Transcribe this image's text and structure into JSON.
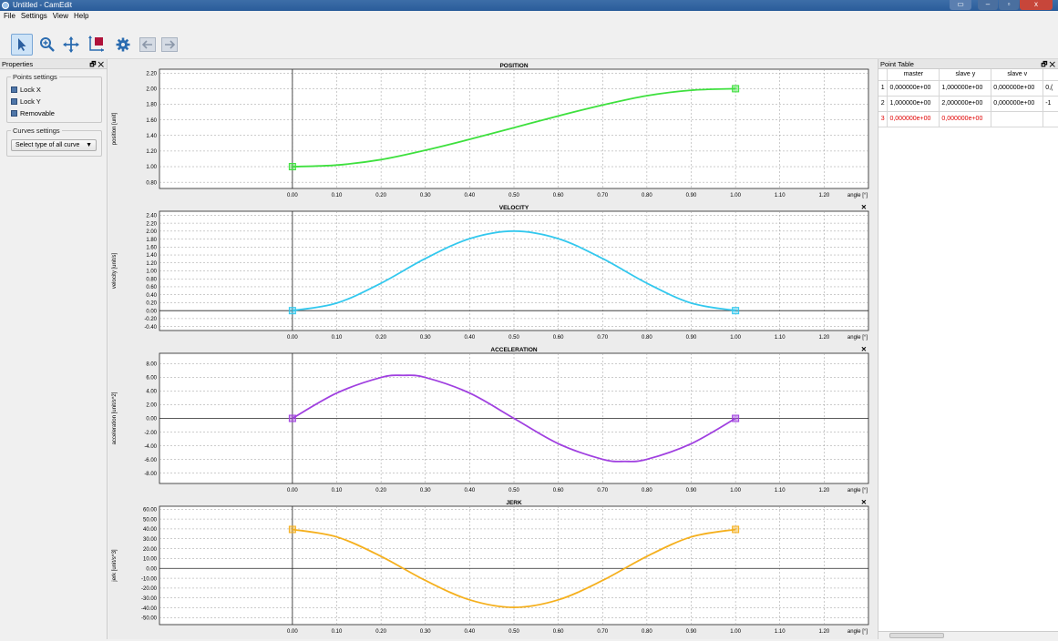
{
  "window": {
    "title": "Untitled - CamEdit",
    "btn_min": "–",
    "btn_max": "▫",
    "btn_close": "x"
  },
  "menu": [
    "File",
    "Settings",
    "View",
    "Help"
  ],
  "toolbar": {
    "icons": [
      "select-arrow-icon",
      "zoom-icon",
      "pan-icon",
      "crop-icon",
      "settings-gear-icon",
      "back-arrow-icon",
      "forward-arrow-icon"
    ]
  },
  "properties": {
    "title": "Properties",
    "float_symbol": "🗗",
    "close_symbol": "✕",
    "points_settings": {
      "legend": "Points settings",
      "options": [
        "Lock X",
        "Lock Y",
        "Removable"
      ]
    },
    "curves_settings": {
      "legend": "Curves settings",
      "select_value": "Select type of all curve"
    }
  },
  "point_table": {
    "title": "Point Table",
    "columns": [
      "master",
      "slave y",
      "slave v"
    ],
    "rows": [
      {
        "n": "1",
        "master": "0,000000e+00",
        "slave_y": "1,000000e+00",
        "slave_v": "0,000000e+00",
        "extra": "0,("
      },
      {
        "n": "2",
        "master": "1,000000e+00",
        "slave_y": "2,000000e+00",
        "slave_v": "0,000000e+00",
        "extra": "-1"
      },
      {
        "n": "3",
        "master": "0,000000e+00",
        "slave_y": "0,000000e+00",
        "slave_v": "",
        "extra": ""
      }
    ]
  },
  "chart_data": [
    {
      "type": "line",
      "title": "POSITION",
      "ylabel": "position [unit]",
      "xlabel": "angle [°]",
      "color": "#3ee03e",
      "xlim": [
        -0.3,
        1.3
      ],
      "ylim": [
        0.72,
        2.25
      ],
      "yticks": [
        "2.20",
        "2.00",
        "1.80",
        "1.60",
        "1.40",
        "1.20",
        "1.00",
        "0.80"
      ],
      "xticks": [
        "0.00",
        "0.10",
        "0.20",
        "0.30",
        "0.40",
        "0.50",
        "0.60",
        "0.70",
        "0.80",
        "0.90",
        "1.00",
        "1.10",
        "1.20"
      ],
      "x": [
        0,
        0.1,
        0.2,
        0.3,
        0.4,
        0.5,
        0.6,
        0.7,
        0.8,
        0.9,
        1.0
      ],
      "y": [
        1.0,
        1.02,
        1.09,
        1.21,
        1.35,
        1.5,
        1.65,
        1.79,
        1.91,
        1.98,
        2.0
      ],
      "points": [
        [
          0,
          1.0
        ],
        [
          1.0,
          2.0
        ]
      ],
      "closable": false
    },
    {
      "type": "line",
      "title": "VELOCITY",
      "ylabel": "velocity [unit/s]",
      "xlabel": "angle [°]",
      "color": "#33c8ee",
      "xlim": [
        -0.3,
        1.3
      ],
      "ylim": [
        -0.5,
        2.5
      ],
      "yticks": [
        "2.40",
        "2.20",
        "2.00",
        "1.80",
        "1.60",
        "1.40",
        "1.20",
        "1.00",
        "0.80",
        "0.60",
        "0.40",
        "0.20",
        "0.00",
        "-0.20",
        "-0.40"
      ],
      "xticks": [
        "0.00",
        "0.10",
        "0.20",
        "0.30",
        "0.40",
        "0.50",
        "0.60",
        "0.70",
        "0.80",
        "0.90",
        "1.00",
        "1.10",
        "1.20"
      ],
      "x": [
        0,
        0.1,
        0.2,
        0.3,
        0.4,
        0.5,
        0.6,
        0.7,
        0.8,
        0.9,
        1.0
      ],
      "y": [
        0,
        0.19,
        0.69,
        1.31,
        1.81,
        2.0,
        1.81,
        1.31,
        0.69,
        0.19,
        0
      ],
      "points": [
        [
          0,
          0
        ],
        [
          1.0,
          0
        ]
      ],
      "closable": true
    },
    {
      "type": "line",
      "title": "ACCELERATION",
      "ylabel": "acceleration [unit/s^2]",
      "xlabel": "angle [°]",
      "color": "#a040e0",
      "xlim": [
        -0.3,
        1.3
      ],
      "ylim": [
        -9.5,
        9.5
      ],
      "yticks": [
        "8.00",
        "6.00",
        "4.00",
        "2.00",
        "0.00",
        "-2.00",
        "-4.00",
        "-6.00",
        "-8.00"
      ],
      "xticks": [
        "0.00",
        "0.10",
        "0.20",
        "0.30",
        "0.40",
        "0.50",
        "0.60",
        "0.70",
        "0.80",
        "0.90",
        "1.00",
        "1.10",
        "1.20"
      ],
      "x": [
        0,
        0.1,
        0.2,
        0.25,
        0.3,
        0.4,
        0.5,
        0.6,
        0.7,
        0.75,
        0.8,
        0.9,
        1.0
      ],
      "y": [
        0,
        3.69,
        5.97,
        6.28,
        5.97,
        3.69,
        0,
        -3.69,
        -5.97,
        -6.28,
        -5.97,
        -3.69,
        0
      ],
      "points": [
        [
          0,
          0
        ],
        [
          1.0,
          0
        ]
      ],
      "closable": true
    },
    {
      "type": "line",
      "title": "JERK",
      "ylabel": "jerk [unit/s^3]",
      "xlabel": "angle [°]",
      "color": "#f5b01e",
      "xlim": [
        -0.3,
        1.3
      ],
      "ylim": [
        -57,
        63
      ],
      "yticks": [
        "60.00",
        "50.00",
        "40.00",
        "30.00",
        "20.00",
        "10.00",
        "0.00",
        "-10.00",
        "-20.00",
        "-30.00",
        "-40.00",
        "-50.00"
      ],
      "xticks": [
        "0.00",
        "0.10",
        "0.20",
        "0.30",
        "0.40",
        "0.50",
        "0.60",
        "0.70",
        "0.80",
        "0.90",
        "1.00",
        "1.10",
        "1.20"
      ],
      "x": [
        0,
        0.1,
        0.2,
        0.3,
        0.4,
        0.5,
        0.6,
        0.7,
        0.8,
        0.9,
        1.0
      ],
      "y": [
        39.5,
        31.9,
        12.2,
        -12.2,
        -31.9,
        -39.5,
        -31.9,
        -12.2,
        12.2,
        31.9,
        39.5
      ],
      "points": [
        [
          0,
          39.5
        ],
        [
          1.0,
          39.5
        ]
      ],
      "closable": true
    }
  ]
}
